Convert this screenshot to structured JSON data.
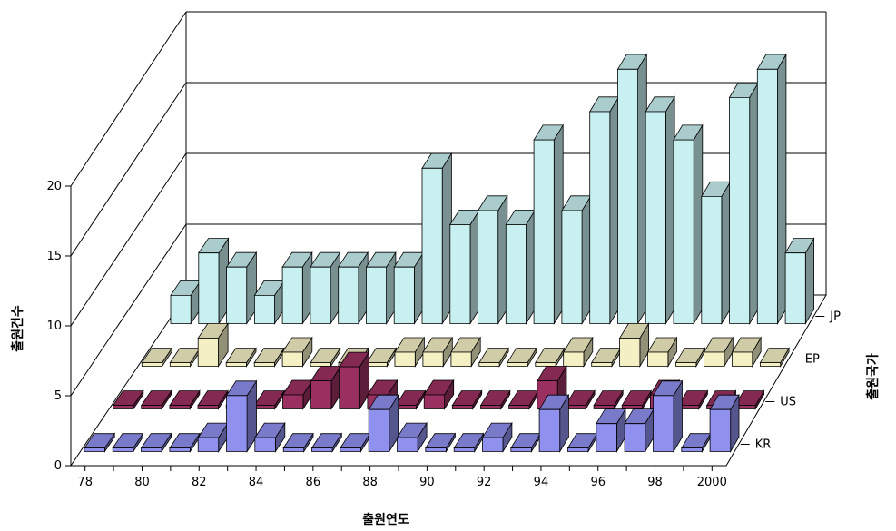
{
  "chart_data": {
    "type": "bar",
    "subtype": "3d-grouped",
    "title": "",
    "xlabel": "출원연도",
    "ylabel": "출원건수",
    "zlabel": "출원국가",
    "ylim": [
      0,
      20
    ],
    "yticks": [
      "0",
      "5",
      "10",
      "15",
      "20"
    ],
    "grid": true,
    "categories": [
      "78",
      "79",
      "80",
      "81",
      "82",
      "83",
      "84",
      "85",
      "86",
      "87",
      "88",
      "89",
      "90",
      "91",
      "92",
      "93",
      "94",
      "95",
      "96",
      "97",
      "98",
      "99",
      "2000"
    ],
    "xtick_labels": [
      "78",
      "80",
      "82",
      "84",
      "86",
      "88",
      "90",
      "92",
      "94",
      "96",
      "98",
      "2000"
    ],
    "series": [
      {
        "name": "JP",
        "color": "#c8f0f0",
        "values": [
          2,
          5,
          4,
          2,
          4,
          4,
          4,
          4,
          4,
          11,
          7,
          8,
          7,
          13,
          8,
          15,
          18,
          15,
          13,
          9,
          16,
          18,
          5
        ]
      },
      {
        "name": "EP",
        "color": "#f4f0c4",
        "values": [
          0,
          0,
          2,
          0,
          0,
          1,
          0,
          0,
          0,
          1,
          1,
          1,
          0,
          0,
          0,
          1,
          0,
          2,
          1,
          0,
          1,
          1,
          0
        ]
      },
      {
        "name": "US",
        "color": "#9a3060",
        "values": [
          0,
          0,
          0,
          0,
          0,
          0,
          1,
          2,
          3,
          1,
          0,
          1,
          0,
          0,
          0,
          2,
          0,
          0,
          0,
          1,
          0,
          0,
          0
        ]
      },
      {
        "name": "KR",
        "color": "#9090ee",
        "values": [
          0,
          0,
          0,
          0,
          1,
          4,
          1,
          0,
          0,
          0,
          3,
          1,
          0,
          0,
          1,
          0,
          3,
          0,
          2,
          2,
          4,
          0,
          3
        ]
      }
    ]
  }
}
